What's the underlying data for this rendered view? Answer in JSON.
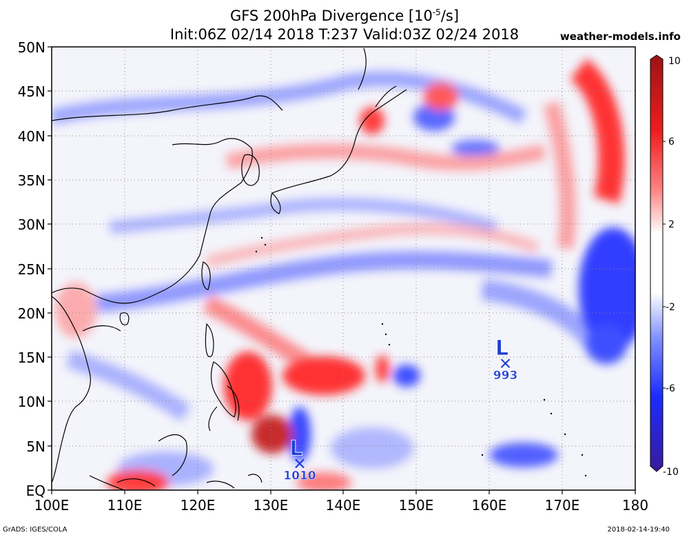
{
  "title_line1": "GFS 200hPa Divergence [10",
  "title_exp": "-5",
  "title_unit": "/s]",
  "title_line2": "Init:06Z 02/14 2018 T:237 Valid:03Z 02/24 2018",
  "site": "weather-models.info",
  "footer_left": "GrADS: IGES/COLA",
  "footer_right": "2018-02-14-19:40",
  "lat_ticks": [
    "50N",
    "45N",
    "40N",
    "35N",
    "30N",
    "25N",
    "20N",
    "15N",
    "10N",
    "5N",
    "EQ"
  ],
  "lon_ticks": [
    "100E",
    "110E",
    "120E",
    "130E",
    "140E",
    "150E",
    "160E",
    "170E",
    "180"
  ],
  "colorbar_labels": [
    "10",
    "6",
    "2",
    "-2",
    "-6",
    "-10"
  ],
  "lows": [
    {
      "letter": "L",
      "pressure": "993",
      "lon": 162.2,
      "lat": 14.3
    },
    {
      "letter": "L",
      "pressure": "1010",
      "lon": 134.0,
      "lat": 3.0
    }
  ],
  "colors": {
    "max": "#b01818",
    "pos": "#ff2020",
    "neutral": "#ffffff",
    "neg": "#2030ff",
    "min": "#3a1a9a",
    "low_marker": "#1f3fd6"
  }
}
